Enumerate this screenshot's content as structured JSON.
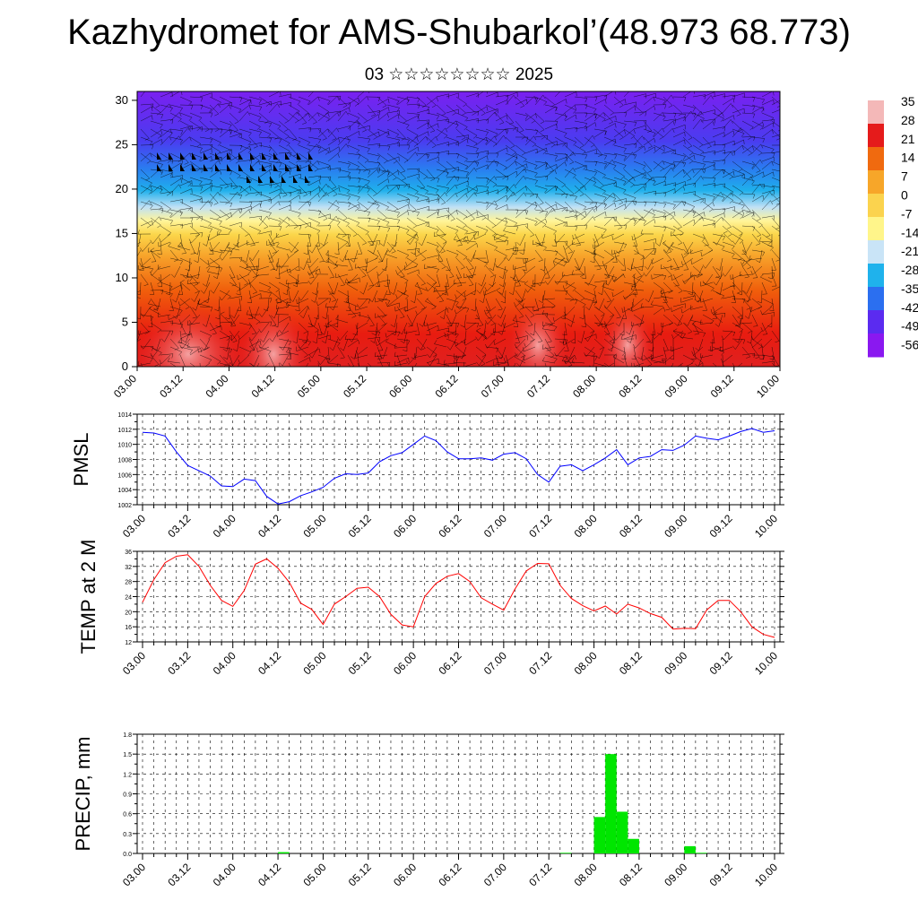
{
  "title": "Kazhydromet for AMS-Shubarkol’(48.973 68.773)",
  "subtitle": "03 ☆☆☆☆☆☆☆☆ 2025",
  "x_ticks": [
    "03.00",
    "03.12",
    "04.00",
    "04.12",
    "05.00",
    "05.12",
    "06.00",
    "06.12",
    "07.00",
    "07.12",
    "08.00",
    "08.12",
    "09.00",
    "09.12",
    "10.00"
  ],
  "colorbar": {
    "labels": [
      "35",
      "28",
      "21",
      "14",
      "7",
      "0",
      "-7",
      "-14",
      "-21",
      "-28",
      "-35",
      "-42",
      "-49",
      "-56"
    ],
    "colors": [
      "#f4b8b8",
      "#e51b1b",
      "#f06a0f",
      "#f7a629",
      "#fbd34e",
      "#fff58a",
      "#c9e4f7",
      "#1fb2ec",
      "#2b6ff0",
      "#5b2bf0",
      "#8a18f0"
    ]
  },
  "chart_data": [
    {
      "type": "heatmap",
      "name_hint": "wind-temperature-cross-section",
      "y_ticks": [
        "0",
        "5",
        "10",
        "15",
        "20",
        "25",
        "30"
      ],
      "ylim": [
        0,
        31
      ],
      "xlim": [
        "03.00",
        "10.00"
      ],
      "temperature_by_height": [
        {
          "height": 0,
          "temp": 33
        },
        {
          "height": 5,
          "temp": 22
        },
        {
          "height": 10,
          "temp": 12
        },
        {
          "height": 15,
          "temp": 0
        },
        {
          "height": 18,
          "temp": -12
        },
        {
          "height": 20,
          "temp": -25
        },
        {
          "height": 23,
          "temp": -40
        },
        {
          "height": 27,
          "temp": -52
        },
        {
          "height": 30,
          "temp": -56
        }
      ]
    },
    {
      "type": "line",
      "ylabel": "PMSL",
      "y_ticks": [
        "1002",
        "1004",
        "1006",
        "1008",
        "1010",
        "1012",
        "1014"
      ],
      "ylim": [
        1002,
        1014
      ],
      "color": "#0000ff",
      "values": [
        1011.6,
        1011.5,
        1011.1,
        1009.0,
        1007.2,
        1006.5,
        1005.8,
        1004.5,
        1004.4,
        1005.4,
        1005.2,
        1003.1,
        1002.1,
        1002.4,
        1003.2,
        1003.7,
        1004.3,
        1005.5,
        1006.1,
        1006.0,
        1006.2,
        1007.7,
        1008.5,
        1008.9,
        1010.0,
        1011.1,
        1010.5,
        1009.0,
        1008.1,
        1008.1,
        1008.2,
        1007.9,
        1008.7,
        1008.9,
        1008.1,
        1006.0,
        1005.0,
        1007.1,
        1007.3,
        1006.5,
        1007.3,
        1008.2,
        1009.3,
        1007.3,
        1008.2,
        1008.4,
        1009.3,
        1009.2,
        1009.9,
        1011.1,
        1010.8,
        1010.6,
        1011.1,
        1011.7,
        1012.1,
        1011.6,
        1011.8
      ],
      "x_step_hours": 3
    },
    {
      "type": "line",
      "ylabel": "TEMP at 2 M",
      "y_ticks": [
        "12",
        "16",
        "20",
        "24",
        "28",
        "32",
        "36"
      ],
      "ylim": [
        12,
        36
      ],
      "color": "#ff0000",
      "values": [
        22.5,
        28.5,
        33.0,
        34.7,
        35.1,
        32.0,
        27.0,
        23.0,
        21.4,
        25.6,
        32.6,
        34.0,
        31.5,
        27.8,
        22.3,
        20.6,
        16.6,
        22.0,
        24.0,
        26.2,
        26.5,
        24.0,
        19.3,
        16.5,
        16.0,
        24.0,
        27.5,
        29.4,
        30.1,
        28.0,
        23.7,
        22.0,
        20.4,
        26.0,
        30.8,
        32.8,
        32.7,
        27.0,
        23.5,
        21.6,
        20.2,
        21.5,
        19.4,
        22.0,
        21.0,
        19.5,
        18.5,
        15.4,
        15.6,
        15.5,
        20.5,
        23.0,
        23.0,
        20.0,
        16.0,
        14.0,
        13.2
      ],
      "x_step_hours": 3
    },
    {
      "type": "bar",
      "ylabel": "PRECIP, mm",
      "y_ticks": [
        "0.0",
        "0.3",
        "0.6",
        "0.9",
        "1.2",
        "1.5",
        "1.8"
      ],
      "ylim": [
        0,
        1.8
      ],
      "color": "#00e600",
      "bars": [
        {
          "x_hours": 36,
          "value": 0.02
        },
        {
          "x_hours": 111,
          "value": 0.01
        },
        {
          "x_hours": 120,
          "value": 0.55
        },
        {
          "x_hours": 123,
          "value": 1.5
        },
        {
          "x_hours": 126,
          "value": 0.63
        },
        {
          "x_hours": 129,
          "value": 0.22
        },
        {
          "x_hours": 144,
          "value": 0.11
        },
        {
          "x_hours": 147,
          "value": 0.01
        }
      ]
    }
  ]
}
